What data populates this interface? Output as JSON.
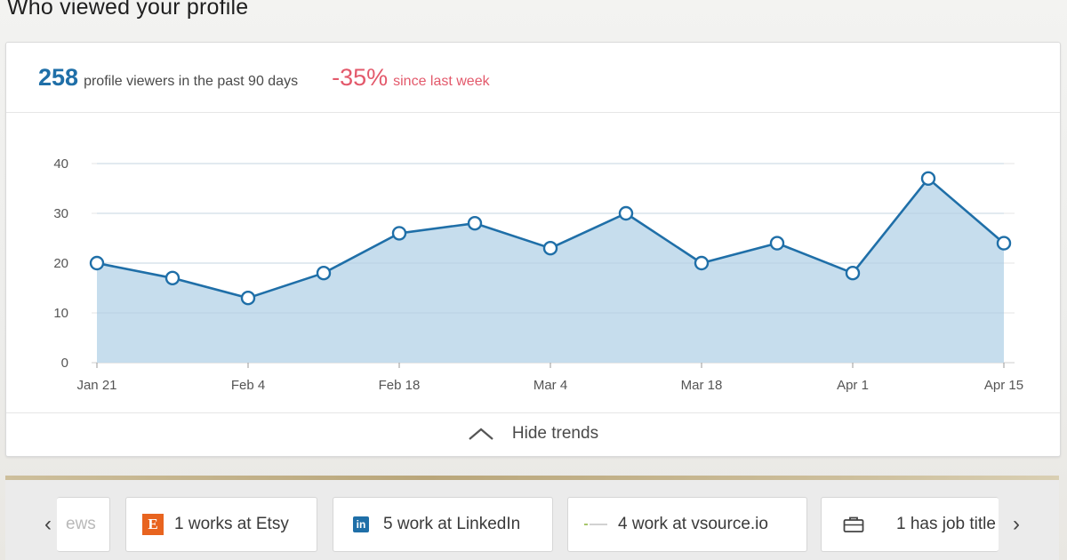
{
  "page": {
    "title": "Who viewed your profile"
  },
  "summary": {
    "count": "258",
    "count_text": "profile viewers in the past 90 days",
    "delta": "-35%",
    "delta_text": "since last week"
  },
  "colors": {
    "accent": "#1f6fa8",
    "negative": "#e3596b",
    "area_fill": "#c3dbec",
    "etsy": "#e8641f"
  },
  "chart_data": {
    "type": "area",
    "x": [
      "Jan 21",
      "Jan 28",
      "Feb 4",
      "Feb 11",
      "Feb 18",
      "Feb 25",
      "Mar 4",
      "Mar 11",
      "Mar 18",
      "Mar 25",
      "Apr 1",
      "Apr 8",
      "Apr 15"
    ],
    "tick_labels": [
      "Jan 21",
      "Feb 4",
      "Feb 18",
      "Mar 4",
      "Mar 18",
      "Apr 1",
      "Apr 15"
    ],
    "series": [
      {
        "values": [
          20,
          17,
          13,
          18,
          26,
          28,
          23,
          30,
          20,
          24,
          18,
          37,
          24
        ]
      }
    ],
    "ylim": [
      0,
      40
    ],
    "yticks": [
      0,
      10,
      20,
      30,
      40
    ],
    "grid": true,
    "title": "",
    "xlabel": "",
    "ylabel": ""
  },
  "trends": {
    "toggle_label": "Hide trends",
    "icon": "chevron-up-icon"
  },
  "filters": {
    "prev_arrow": "‹",
    "next_arrow": "›",
    "chips": [
      {
        "label": "ews",
        "icon": ""
      },
      {
        "label": "1 works at Etsy",
        "icon": "etsy-logo-icon",
        "logo_text": "E"
      },
      {
        "label": "5 work at LinkedIn",
        "icon": "linkedin-logo-icon",
        "logo_text": "in"
      },
      {
        "label": "4 work at vsource.io",
        "icon": "vsource-logo-icon"
      },
      {
        "label": "1 has job title",
        "icon": "briefcase-icon"
      }
    ]
  }
}
